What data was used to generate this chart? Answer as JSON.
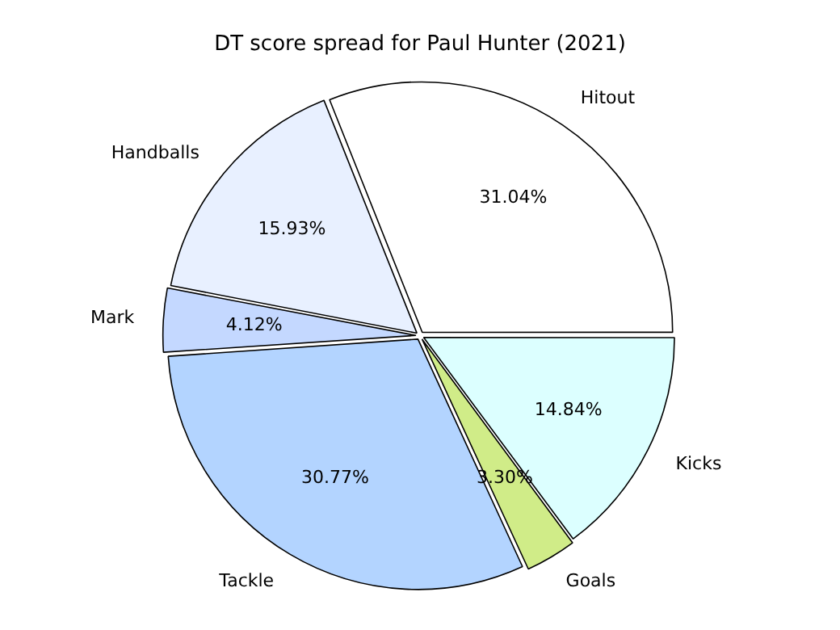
{
  "chart_data": {
    "type": "pie",
    "title": "DT score spread for Paul Hunter (2021)",
    "categories": [
      "Hitout",
      "Handballs",
      "Mark",
      "Tackle",
      "Goals",
      "Kicks"
    ],
    "values": [
      31.04,
      15.93,
      4.12,
      30.77,
      3.3,
      14.84
    ],
    "value_labels": [
      "31.04%",
      "15.93%",
      "4.12%",
      "30.77%",
      "3.30%",
      "14.84%"
    ],
    "colors": [
      "#ffffff",
      "#e8f0ff",
      "#c4d8ff",
      "#b3d4ff",
      "#d0ec88",
      "#dcffff"
    ],
    "legend": false
  }
}
